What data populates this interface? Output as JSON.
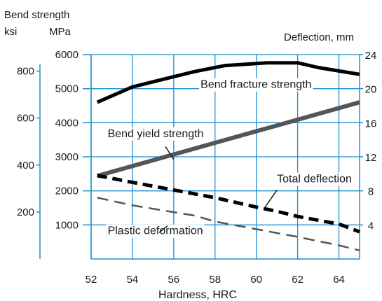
{
  "chart_data": {
    "type": "line",
    "labels": {
      "bend_strength": "Bend strength",
      "ksi": "ksi",
      "mpa": "MPa",
      "deflection": "Deflection, mm",
      "xlabel": "Hardness, HRC"
    },
    "x_axis": {
      "range": [
        52,
        65
      ],
      "ticks": [
        52,
        54,
        56,
        58,
        60,
        62,
        64
      ]
    },
    "y_mpa": {
      "range": [
        0,
        6000
      ],
      "ticks": [
        1000,
        2000,
        3000,
        4000,
        5000,
        6000
      ]
    },
    "y_ksi": {
      "ticks": [
        200,
        400,
        600,
        800
      ],
      "mpa_per_ksi": 6.895
    },
    "y_deflection": {
      "range": [
        0,
        24
      ],
      "ticks": [
        4,
        8,
        12,
        16,
        20,
        24
      ]
    },
    "grid": true,
    "colors": {
      "grid": "#1d8fd0",
      "axis": "#1d8fd0",
      "bend_fracture": "#000000",
      "bend_yield": "#555555",
      "total_deflection": "#000000",
      "plastic_deformation": "#555555"
    },
    "series": [
      {
        "key": "bend_fracture",
        "name": "Bend fracture strength",
        "axis": "mpa",
        "style": "solid",
        "width": 5,
        "x": [
          52.3,
          54,
          56,
          57,
          58.5,
          60,
          60.5,
          61,
          62,
          63,
          65
        ],
        "y": [
          4600,
          5050,
          5350,
          5500,
          5680,
          5740,
          5760,
          5760,
          5760,
          5620,
          5420
        ],
        "label_at": [
          57.3,
          5020
        ]
      },
      {
        "key": "bend_yield",
        "name": "Bend yield strength",
        "axis": "mpa",
        "style": "solid",
        "width": 6,
        "x": [
          52.3,
          65
        ],
        "y": [
          2440,
          4600
        ],
        "label_at": [
          52.8,
          3580
        ]
      },
      {
        "key": "total_deflection",
        "name": "Total deflection",
        "axis": "deflection",
        "style": "dashed",
        "width": 5,
        "x": [
          52.3,
          54,
          56,
          58,
          60,
          61,
          62,
          64,
          65
        ],
        "y": [
          9.8,
          9.0,
          8.1,
          7.2,
          6.1,
          5.6,
          5.0,
          4.1,
          3.2
        ],
        "label_at": [
          61,
          9.0
        ]
      },
      {
        "key": "plastic_deformation",
        "name": "Plastic deformation",
        "axis": "deflection",
        "style": "dashed",
        "width": 2.5,
        "x": [
          52.3,
          54,
          56,
          57,
          58,
          60,
          62,
          64,
          65
        ],
        "y": [
          7.2,
          6.3,
          5.5,
          5.1,
          4.4,
          3.5,
          2.6,
          1.6,
          1.0
        ],
        "label_at": [
          52.8,
          2.9
        ]
      }
    ]
  }
}
